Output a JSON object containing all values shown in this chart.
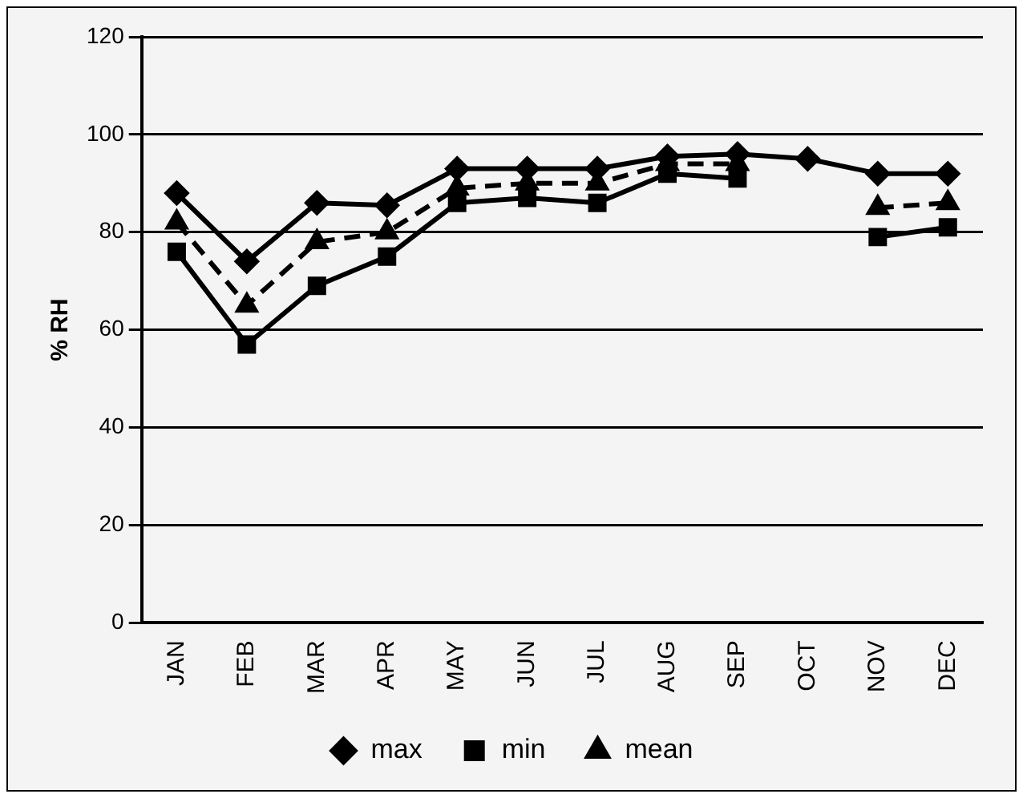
{
  "chart_data": {
    "type": "line",
    "ylabel": "% RH",
    "categories": [
      "JAN",
      "FEB",
      "MAR",
      "APR",
      "MAY",
      "JUN",
      "JUL",
      "AUG",
      "SEP",
      "OCT",
      "NOV",
      "DEC"
    ],
    "series": [
      {
        "name": "max",
        "color": "#000000",
        "marker": "diamond",
        "line_style": "solid",
        "values": [
          88,
          74,
          86,
          85.5,
          93,
          93,
          93,
          95.5,
          96,
          95,
          92,
          92
        ]
      },
      {
        "name": "min",
        "color": "#000000",
        "marker": "square",
        "line_style": "solid",
        "values": [
          76,
          57,
          69,
          75,
          86,
          87,
          86,
          92,
          91,
          null,
          79,
          81
        ]
      },
      {
        "name": "mean",
        "color": "#000000",
        "marker": "triangle",
        "line_style": "dashed",
        "values": [
          82,
          65,
          78,
          80,
          89,
          90,
          90,
          94,
          94,
          null,
          85,
          86
        ]
      }
    ],
    "ylim": [
      0,
      120
    ],
    "yticks": [
      0,
      20,
      40,
      60,
      80,
      100,
      120
    ],
    "grid": "y",
    "legend": "bottom"
  }
}
